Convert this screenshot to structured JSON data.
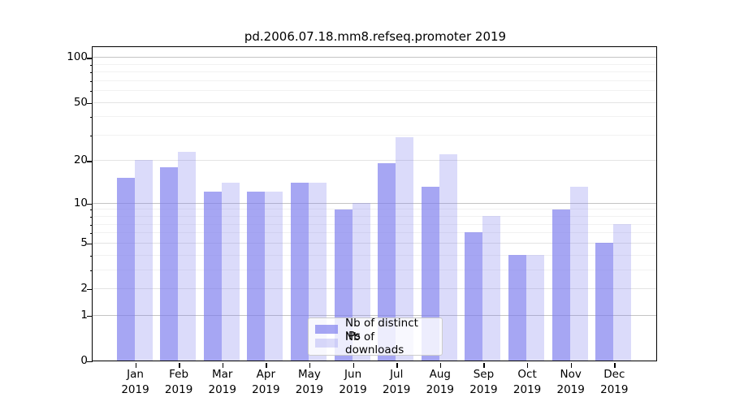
{
  "chart_data": {
    "type": "bar",
    "title": "pd.2006.07.18.mm8.refseq.promoter 2019",
    "categories": [
      "Jan",
      "Feb",
      "Mar",
      "Apr",
      "May",
      "Jun",
      "Jul",
      "Aug",
      "Sep",
      "Oct",
      "Nov",
      "Dec"
    ],
    "year_label": "2019",
    "series": [
      {
        "name": "Nb of distinct IPs",
        "color": "rgba(124,124,238,0.68)",
        "values": [
          15,
          18,
          12,
          12,
          14,
          9,
          19,
          13,
          6,
          4,
          9,
          5
        ]
      },
      {
        "name": "Nb of downloads",
        "color": "rgba(124,124,238,0.28)",
        "values": [
          20,
          23,
          14,
          12,
          14,
          10,
          29,
          22,
          8,
          4,
          13,
          7
        ]
      }
    ],
    "yscale": "log1p",
    "yticks": [
      100,
      50,
      20,
      10,
      5,
      2,
      1,
      0
    ],
    "yticks_minor": [
      3,
      4,
      6,
      7,
      8,
      9,
      30,
      40,
      60,
      70,
      80,
      90
    ],
    "ylim": [
      0,
      115
    ],
    "xlabel": "",
    "ylabel": "",
    "grid": "horizontal",
    "legend_position": "lower center"
  }
}
